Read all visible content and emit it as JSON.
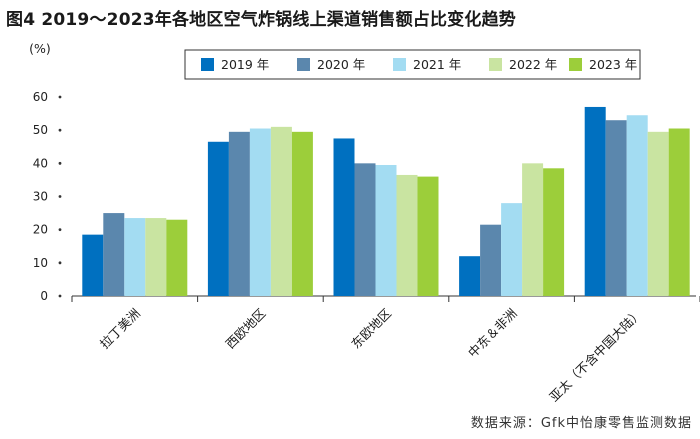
{
  "chart_data": {
    "type": "bar",
    "title": "图4  2019～2023年各地区空气炸锅线上渠道销售额占比变化趋势",
    "ylabel": "(%)",
    "xlabel": "",
    "ylim": [
      0,
      60
    ],
    "yticks": [
      0,
      10,
      20,
      30,
      40,
      50,
      60
    ],
    "categories": [
      "拉丁美洲",
      "西欧地区",
      "东欧地区",
      "中东＆非洲",
      "亚太（不含中国大陆）"
    ],
    "series": [
      {
        "name": "2019 年",
        "color": "#0070c0",
        "values": [
          18.5,
          46.5,
          47.5,
          12,
          57
        ]
      },
      {
        "name": "2020 年",
        "color": "#5b87ad",
        "values": [
          25,
          49.5,
          40,
          21.5,
          53
        ]
      },
      {
        "name": "2021 年",
        "color": "#a3dcf2",
        "values": [
          23.5,
          50.5,
          39.5,
          28,
          54.5
        ]
      },
      {
        "name": "2022 年",
        "color": "#c9e4a1",
        "values": [
          23.5,
          51,
          36.5,
          40,
          49.5
        ]
      },
      {
        "name": "2023 年",
        "color": "#9cce3a",
        "values": [
          23,
          49.5,
          36,
          38.5,
          50.5
        ]
      }
    ],
    "legend_position": "top-right"
  },
  "source_text": "数据来源：Gfk中怡康零售监测数据"
}
